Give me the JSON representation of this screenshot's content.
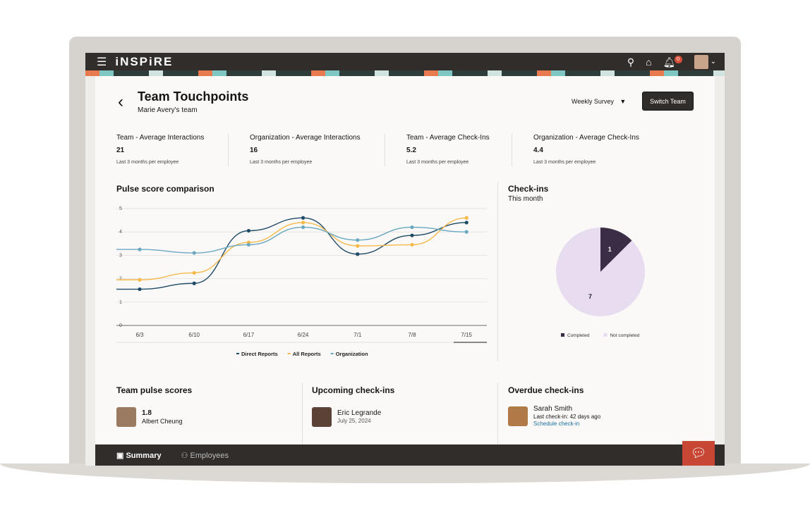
{
  "app": {
    "logo": "iNSPiRE",
    "notification_count": "0"
  },
  "header": {
    "title": "Team Touchpoints",
    "subtitle": "Marie Avery's team",
    "survey_select": "Weekly Survey",
    "switch_team": "Switch Team"
  },
  "kpis": [
    {
      "label": "Team - Average Interactions",
      "value": "21",
      "sub": "Last 3 months per employee"
    },
    {
      "label": "Organization - Average Interactions",
      "value": "16",
      "sub": "Last 3 months per employee"
    },
    {
      "label": "Team - Average Check-Ins",
      "value": "5.2",
      "sub": "Last 3 months per employee"
    },
    {
      "label": "Organization - Average Check-Ins",
      "value": "4.4",
      "sub": "Last 3 months per employee"
    }
  ],
  "chart_data": [
    {
      "type": "line",
      "title": "Pulse score comparison",
      "categories": [
        "6/3",
        "6/10",
        "6/17",
        "6/24",
        "7/1",
        "7/8",
        "7/15"
      ],
      "ylim": [
        0,
        5
      ],
      "yticks": [
        "0",
        "1",
        "2",
        "3",
        "4",
        "5"
      ],
      "legend": "bottom",
      "series": [
        {
          "name": "Direct Reports",
          "color": "#1e4a66",
          "values": [
            1.55,
            1.8,
            4.05,
            4.6,
            3.05,
            3.85,
            4.4
          ]
        },
        {
          "name": "All Reports",
          "color": "#f5b94a",
          "values": [
            1.95,
            2.25,
            3.55,
            4.4,
            3.4,
            3.45,
            4.6
          ]
        },
        {
          "name": "Organization",
          "color": "#6aa8c2",
          "values": [
            3.25,
            3.1,
            3.45,
            4.2,
            3.65,
            4.2,
            4.0
          ]
        }
      ]
    },
    {
      "type": "pie",
      "title": "Check-ins",
      "subtitle": "This month",
      "slices": [
        {
          "name": "Completed",
          "value": 1,
          "color": "#3b2d45"
        },
        {
          "name": "Not completed",
          "value": 7,
          "color": "#e8dcf0"
        }
      ],
      "legend": "bottom"
    }
  ],
  "team_pulse": {
    "title": "Team pulse scores",
    "items": [
      {
        "score": "1.8",
        "name": "Albert Cheung"
      }
    ]
  },
  "upcoming": {
    "title": "Upcoming check-ins",
    "items": [
      {
        "name": "Eric Legrande",
        "date": "July 25, 2024"
      }
    ]
  },
  "overdue": {
    "title": "Overdue check-ins",
    "items": [
      {
        "name": "Sarah Smith",
        "last": "Last check-in: 42 days ago",
        "action": "Schedule check-in"
      }
    ]
  },
  "bottom_nav": {
    "summary": "Summary",
    "employees": "Employees"
  }
}
